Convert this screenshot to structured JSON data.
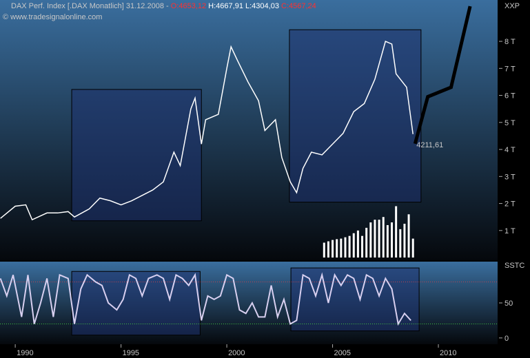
{
  "chart_data": [
    {
      "type": "line",
      "title": "DAX Perf. Index [.DAX  Monatlich] 31.12.2008 -",
      "ohlc": [
        "O:4653,12",
        "H:4667,91",
        "L:4304,03",
        "C:4567,24"
      ],
      "ohlc_colors": [
        "#ff3030",
        "#ffffff",
        "#ffffff",
        "#ff3030"
      ],
      "copyright": "© www.tradesignalonline.com",
      "axis_label": "XXP",
      "annotation": "4211,61",
      "xlim": [
        1989.28,
        2012.8
      ],
      "xticks": [
        1990,
        1995,
        2000,
        2005,
        2010
      ],
      "ylim": [
        -100,
        9530
      ],
      "yticks": [
        {
          "value": 1000,
          "label": "1 T"
        },
        {
          "value": 2000,
          "label": "2 T"
        },
        {
          "value": 3000,
          "label": "3 T"
        },
        {
          "value": 4000,
          "label": "4 T"
        },
        {
          "value": 5000,
          "label": "5 T"
        },
        {
          "value": 6000,
          "label": "6 T"
        },
        {
          "value": 7000,
          "label": "7 T"
        },
        {
          "value": 8000,
          "label": "8 T"
        }
      ],
      "price": {
        "color": "#ffffff",
        "x": [
          1989.3,
          1990.0,
          1990.5,
          1990.8,
          1991.5,
          1992.0,
          1992.5,
          1992.8,
          1993.5,
          1994.0,
          1994.5,
          1995.0,
          1995.5,
          1996.0,
          1996.5,
          1997.0,
          1997.5,
          1997.8,
          1998.3,
          1998.5,
          1998.8,
          1999.0,
          1999.6,
          2000.0,
          2000.2,
          2000.5,
          2001.0,
          2001.5,
          2001.8,
          2002.3,
          2002.6,
          2003.0,
          2003.3,
          2003.6,
          2004.0,
          2004.5,
          2005.0,
          2005.5,
          2006.0,
          2006.5,
          2007.0,
          2007.5,
          2007.8,
          2008.0,
          2008.5,
          2008.8
        ],
        "values": [
          1450,
          1900,
          1950,
          1400,
          1650,
          1650,
          1700,
          1500,
          1800,
          2200,
          2100,
          1950,
          2100,
          2300,
          2500,
          2800,
          3900,
          3400,
          5500,
          5900,
          4200,
          5100,
          5300,
          7000,
          7800,
          7300,
          6500,
          5800,
          4700,
          5100,
          3700,
          2800,
          2400,
          3300,
          3900,
          3800,
          4200,
          4600,
          5400,
          5700,
          6600,
          8000,
          7900,
          6800,
          6300,
          4567
        ]
      },
      "projection": {
        "color": "#000000",
        "x": [
          2008.9,
          2009.5,
          2010.6,
          2011.5
        ],
        "values": [
          4211.61,
          5950,
          6300,
          9300
        ]
      },
      "volume": {
        "color": "#ffffff",
        "x": [
          2004.6,
          2004.8,
          2005.0,
          2005.2,
          2005.4,
          2005.6,
          2005.8,
          2006.0,
          2006.2,
          2006.4,
          2006.6,
          2006.8,
          2007.0,
          2007.2,
          2007.4,
          2007.6,
          2007.8,
          2008.0,
          2008.2,
          2008.4,
          2008.6,
          2008.8
        ],
        "values": [
          550,
          600,
          650,
          680,
          700,
          750,
          800,
          900,
          1000,
          800,
          1100,
          1300,
          1400,
          1400,
          1500,
          1200,
          1300,
          1900,
          1050,
          1250,
          1600,
          700
        ]
      },
      "boxes": [
        {
          "x": [
            1992.67,
            1998.8
          ],
          "y": [
            1360,
            6220
          ]
        },
        {
          "x": [
            2002.96,
            2009.18
          ],
          "y": [
            2050,
            8430
          ]
        }
      ]
    },
    {
      "type": "line",
      "axis_label": "SSTC",
      "ylim": [
        -9,
        109
      ],
      "yticks": [
        0,
        50
      ],
      "levels": [
        {
          "value": 80,
          "color": "#c04050"
        },
        {
          "value": 20,
          "color": "#40c040"
        }
      ],
      "oscillator": {
        "color": "#d8d0f0",
        "x": [
          1989.3,
          1989.6,
          1989.9,
          1990.3,
          1990.6,
          1990.9,
          1991.2,
          1991.5,
          1991.8,
          1992.1,
          1992.5,
          1992.8,
          1993.1,
          1993.4,
          1993.8,
          1994.1,
          1994.4,
          1994.8,
          1995.1,
          1995.4,
          1995.7,
          1996.0,
          1996.3,
          1996.7,
          1997.0,
          1997.3,
          1997.6,
          1997.9,
          1998.2,
          1998.5,
          1998.8,
          1999.1,
          1999.4,
          1999.7,
          2000.0,
          2000.3,
          2000.6,
          2000.9,
          2001.2,
          2001.5,
          2001.8,
          2002.1,
          2002.4,
          2002.7,
          2003.0,
          2003.3,
          2003.6,
          2003.9,
          2004.2,
          2004.5,
          2004.8,
          2005.1,
          2005.4,
          2005.7,
          2006.0,
          2006.3,
          2006.6,
          2006.9,
          2007.2,
          2007.5,
          2007.8,
          2008.1,
          2008.4,
          2008.7
        ],
        "values": [
          85,
          60,
          90,
          30,
          90,
          20,
          50,
          85,
          30,
          90,
          85,
          20,
          70,
          90,
          80,
          75,
          50,
          40,
          55,
          90,
          85,
          60,
          85,
          90,
          85,
          55,
          90,
          85,
          75,
          90,
          25,
          60,
          55,
          60,
          90,
          85,
          40,
          35,
          50,
          30,
          30,
          75,
          30,
          55,
          20,
          25,
          90,
          85,
          60,
          90,
          50,
          90,
          75,
          90,
          85,
          55,
          90,
          85,
          60,
          85,
          70,
          20,
          35,
          25
        ]
      },
      "boxes": [
        {
          "x": [
            1992.67,
            1998.74
          ],
          "y": [
            4,
            95
          ]
        },
        {
          "x": [
            2003.03,
            2009.09
          ],
          "y": [
            10,
            100
          ]
        }
      ]
    }
  ]
}
